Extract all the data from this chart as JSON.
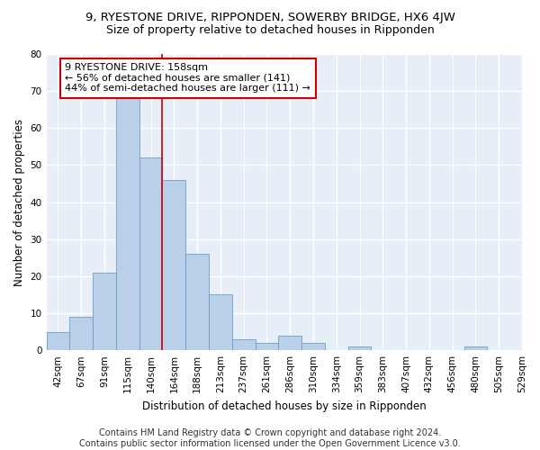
{
  "title1": "9, RYESTONE DRIVE, RIPPONDEN, SOWERBY BRIDGE, HX6 4JW",
  "title2": "Size of property relative to detached houses in Ripponden",
  "xlabel": "Distribution of detached houses by size in Ripponden",
  "ylabel": "Number of detached properties",
  "bar_values": [
    5,
    9,
    21,
    68,
    52,
    46,
    26,
    15,
    3,
    2,
    4,
    2,
    0,
    1,
    0,
    0,
    0,
    0,
    1,
    0
  ],
  "bin_labels": [
    "42sqm",
    "67sqm",
    "91sqm",
    "115sqm",
    "140sqm",
    "164sqm",
    "188sqm",
    "213sqm",
    "237sqm",
    "261sqm",
    "286sqm",
    "310sqm",
    "334sqm",
    "359sqm",
    "383sqm",
    "407sqm",
    "432sqm",
    "456sqm",
    "480sqm",
    "505sqm",
    "529sqm"
  ],
  "bar_color": "#bad0e8",
  "bar_edge_color": "#6a9ec8",
  "vline_color": "#cc0000",
  "vline_x": 4,
  "annotation_text": "9 RYESTONE DRIVE: 158sqm\n← 56% of detached houses are smaller (141)\n44% of semi-detached houses are larger (111) →",
  "annotation_box_color": "#ffffff",
  "annotation_box_edge": "#cc0000",
  "ylim": [
    0,
    80
  ],
  "yticks": [
    0,
    10,
    20,
    30,
    40,
    50,
    60,
    70,
    80
  ],
  "background_color": "#e8eef8",
  "footer": "Contains HM Land Registry data © Crown copyright and database right 2024.\nContains public sector information licensed under the Open Government Licence v3.0.",
  "title1_fontsize": 9.5,
  "title2_fontsize": 9,
  "xlabel_fontsize": 8.5,
  "ylabel_fontsize": 8.5,
  "annotation_fontsize": 8,
  "footer_fontsize": 7,
  "tick_fontsize": 7.5
}
